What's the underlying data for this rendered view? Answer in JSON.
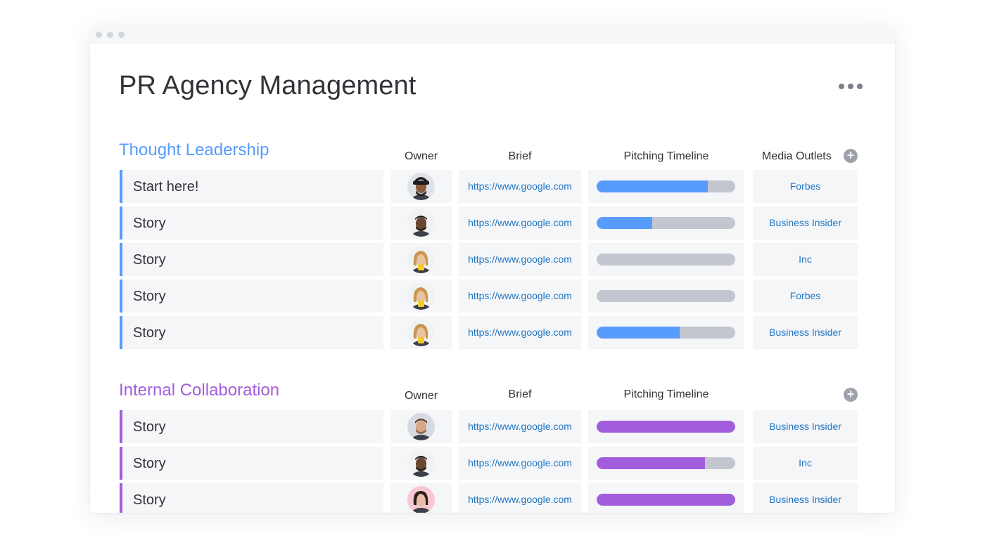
{
  "board": {
    "title": "PR Agency Management"
  },
  "columns": {
    "owner": "Owner",
    "brief": "Brief",
    "timeline": "Pitching Timeline",
    "outlets": "Media Outlets",
    "outlets_second": ""
  },
  "colors": {
    "group1_accent": "#579bfc",
    "group2_accent": "#a25ddc",
    "timeline_track": "#c4c6cf",
    "link": "#1f76c2"
  },
  "groups": [
    {
      "title": "Thought Leadership",
      "rows": [
        {
          "name": "Start here!",
          "brief": "https://www.google.com",
          "timeline_progress": 0.8,
          "outlet": "Forbes",
          "owner_avatar": "man-turban"
        },
        {
          "name": "Story",
          "brief": "https://www.google.com",
          "timeline_progress": 0.4,
          "outlet": "Business Insider",
          "owner_avatar": "man-beard-dark"
        },
        {
          "name": "Story",
          "brief": "https://www.google.com",
          "timeline_progress": 0.0,
          "outlet": "Inc",
          "owner_avatar": "woman-blonde"
        },
        {
          "name": "Story",
          "brief": "https://www.google.com",
          "timeline_progress": 0.0,
          "outlet": "Forbes",
          "owner_avatar": "woman-blonde"
        },
        {
          "name": "Story",
          "brief": "https://www.google.com",
          "timeline_progress": 0.6,
          "outlet": "Business Insider",
          "owner_avatar": "woman-blonde"
        }
      ]
    },
    {
      "title": "Internal Collaboration",
      "rows": [
        {
          "name": "Story",
          "brief": "https://www.google.com",
          "timeline_progress": 1.0,
          "outlet": "Business Insider",
          "owner_avatar": "man-beard-light"
        },
        {
          "name": "Story",
          "brief": "https://www.google.com",
          "timeline_progress": 0.78,
          "outlet": "Inc",
          "owner_avatar": "man-beard-dark"
        },
        {
          "name": "Story",
          "brief": "https://www.google.com",
          "timeline_progress": 1.0,
          "outlet": "Business Insider",
          "owner_avatar": "woman-dark-hair"
        }
      ]
    }
  ]
}
